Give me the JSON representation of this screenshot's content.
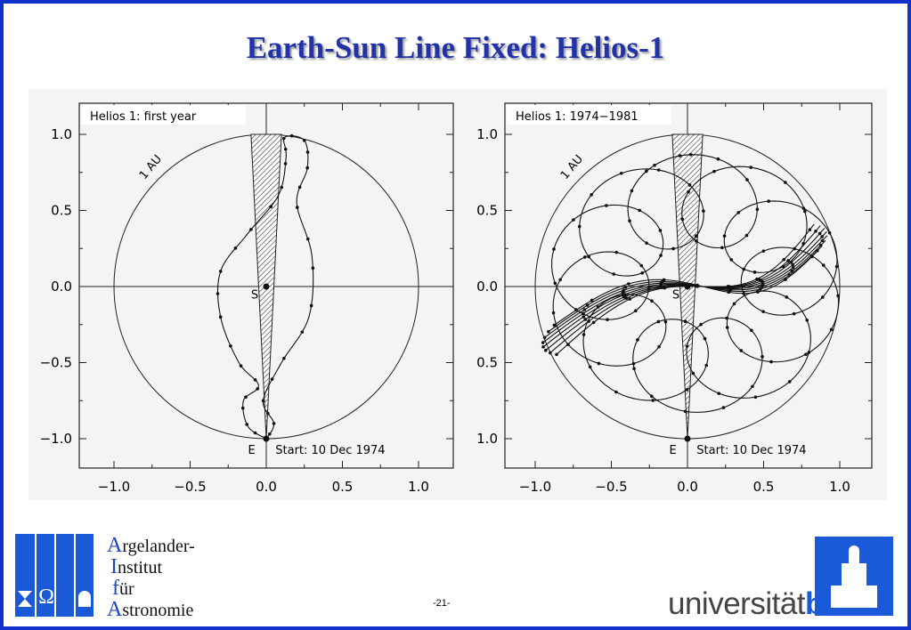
{
  "title": "Earth-Sun Line Fixed: Helios-1",
  "figures": [
    {
      "label": "Helios 1: first year",
      "circle_label": "1 AU",
      "sun_label": "S",
      "earth_label": "E",
      "start_label": "Start: 10 Dec 1974",
      "xticks": [
        "−1.0",
        "−0.5",
        "0.0",
        "0.5",
        "1.0"
      ],
      "yticks": [
        "1.0",
        "0.5",
        "0.0",
        "−0.5",
        "−1.0"
      ]
    },
    {
      "label": "Helios 1: 1974−1981",
      "circle_label": "1 AU",
      "sun_label": "S",
      "earth_label": "E",
      "start_label": "Start: 10 Dec 1974",
      "xticks": [
        "−1.0",
        "−0.5",
        "0.0",
        "0.5",
        "1.0"
      ],
      "yticks": [
        "1.0",
        "0.5",
        "0.0",
        "0.5",
        "1.0"
      ]
    }
  ],
  "logo": {
    "lines": [
      "Argelander-",
      "Institut",
      "für",
      "Astronomie"
    ],
    "symbol": "Ω"
  },
  "page_number": "-21-",
  "university": {
    "first": "universität",
    "second": "bonn"
  }
}
